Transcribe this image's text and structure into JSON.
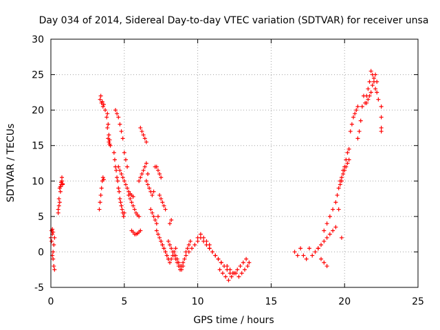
{
  "chart_data": {
    "type": "scatter",
    "title": "Day 034 of 2014, Sidereal Day-to-day VTEC variation (SDTVAR) for receiver unsa",
    "xlabel": "GPS time / hours",
    "ylabel": "SDTVAR / TECUs",
    "xlim": [
      0,
      25
    ],
    "ylim": [
      -5,
      30
    ],
    "xticks": [
      0,
      5,
      10,
      15,
      20,
      25
    ],
    "yticks": [
      -5,
      0,
      5,
      10,
      15,
      20,
      25,
      30
    ],
    "xtick_labels": [
      "0",
      "5",
      "10",
      "15",
      "20",
      "25"
    ],
    "ytick_labels": [
      "-5",
      "0",
      "5",
      "10",
      "15",
      "20",
      "25",
      "30"
    ],
    "grid": true,
    "marker": "+",
    "color": "#ff0000",
    "series": [
      {
        "name": "SDTVAR",
        "x": [
          0.0,
          0.05,
          0.1,
          0.15,
          0.2,
          0.25,
          0.05,
          0.1,
          0.15,
          0.2,
          0.25,
          0.1,
          0.15,
          0.5,
          0.55,
          0.6,
          0.65,
          0.7,
          0.75,
          0.5,
          0.55,
          0.6,
          0.65,
          0.7,
          0.75,
          0.8,
          0.8,
          3.3,
          3.35,
          3.4,
          3.45,
          3.5,
          3.55,
          3.6,
          3.35,
          3.45,
          3.55,
          3.4,
          3.5,
          3.6,
          3.7,
          3.8,
          3.85,
          3.9,
          3.95,
          4.0,
          3.85,
          3.9,
          3.95,
          4.0,
          4.05,
          4.3,
          4.35,
          4.4,
          4.45,
          4.5,
          4.55,
          4.6,
          4.65,
          4.7,
          4.75,
          4.8,
          4.85,
          4.9,
          4.95,
          5.0,
          4.4,
          4.5,
          4.6,
          4.7,
          4.8,
          4.9,
          5.0,
          5.1,
          5.2,
          4.6,
          4.7,
          4.8,
          4.9,
          5.0,
          5.1,
          5.2,
          5.3,
          5.4,
          5.5,
          5.6,
          5.3,
          5.4,
          5.5,
          5.6,
          5.7,
          5.8,
          5.9,
          6.0,
          5.5,
          5.6,
          5.7,
          5.8,
          5.9,
          6.0,
          6.1,
          6.0,
          6.1,
          6.2,
          6.3,
          6.4,
          6.5,
          6.6,
          6.1,
          6.2,
          6.3,
          6.4,
          6.5,
          6.5,
          6.6,
          6.7,
          6.8,
          6.9,
          7.0,
          7.1,
          7.2,
          7.3,
          7.4,
          7.5,
          6.8,
          6.9,
          7.0,
          7.1,
          7.2,
          7.3,
          7.4,
          7.5,
          7.6,
          7.7,
          7.8,
          7.2,
          7.3,
          7.4,
          7.5,
          7.6,
          7.7,
          7.8,
          7.9,
          8.0,
          8.1,
          8.2,
          7.5,
          7.6,
          7.7,
          7.8,
          7.9,
          8.0,
          8.1,
          8.2,
          8.3,
          8.4,
          8.5,
          8.0,
          8.1,
          8.2,
          8.3,
          8.4,
          8.5,
          8.6,
          8.7,
          8.8,
          8.9,
          9.0,
          8.5,
          8.6,
          8.7,
          8.8,
          8.9,
          9.0,
          9.1,
          9.2,
          9.3,
          9.4,
          9.5,
          9.2,
          9.4,
          9.6,
          9.8,
          10.0,
          10.2,
          10.4,
          10.6,
          10.8,
          10.0,
          10.2,
          10.4,
          10.6,
          10.8,
          11.0,
          11.2,
          11.4,
          11.6,
          10.8,
          11.0,
          11.2,
          11.4,
          11.6,
          11.8,
          12.0,
          12.2,
          12.4,
          11.5,
          11.7,
          11.9,
          12.1,
          12.3,
          12.5,
          12.7,
          12.9,
          13.1,
          13.3,
          13.5,
          12.0,
          12.2,
          12.4,
          12.6,
          12.8,
          13.0,
          13.2,
          13.4,
          16.6,
          16.8,
          17.0,
          17.2,
          17.4,
          17.6,
          17.8,
          18.0,
          18.2,
          18.4,
          18.6,
          18.8,
          18.2,
          18.4,
          18.6,
          18.8,
          19.0,
          19.2,
          19.4,
          18.6,
          18.8,
          19.0,
          19.2,
          19.4,
          19.6,
          19.8,
          19.5,
          19.6,
          19.7,
          19.8,
          19.9,
          20.0,
          20.1,
          20.2,
          20.3,
          19.7,
          19.8,
          19.9,
          20.0,
          20.1,
          20.2,
          20.3,
          20.4,
          20.5,
          20.6,
          20.7,
          20.8,
          20.9,
          20.9,
          21.0,
          21.1,
          21.2,
          21.3,
          21.4,
          21.5,
          21.6,
          21.7,
          21.8,
          21.9,
          22.0,
          22.1,
          22.2,
          22.3,
          21.5,
          21.6,
          21.7,
          21.8,
          21.9,
          22.0,
          22.1,
          22.2,
          22.5,
          22.5,
          22.5,
          22.5
        ],
        "y": [
          2.0,
          3.0,
          -0.5,
          0.0,
          -2.0,
          -2.5,
          1.5,
          2.5,
          -1.0,
          1.0,
          2.0,
          3.2,
          2.8,
          5.5,
          6.5,
          7.0,
          8.5,
          9.5,
          10.0,
          6.0,
          7.5,
          9.0,
          9.2,
          9.8,
          10.5,
          9.5,
          9.6,
          6.0,
          7.0,
          8.0,
          9.0,
          10.0,
          10.5,
          10.2,
          21.5,
          21.0,
          20.5,
          22.0,
          21.2,
          20.8,
          20.0,
          19.0,
          17.5,
          16.0,
          15.5,
          15.8,
          19.5,
          18.0,
          16.5,
          15.2,
          15.0,
          14.0,
          13.0,
          12.0,
          11.5,
          10.5,
          10.0,
          9.0,
          8.5,
          7.5,
          7.0,
          6.5,
          6.0,
          5.5,
          5.0,
          5.5,
          20.0,
          19.5,
          19.0,
          18.0,
          17.0,
          16.0,
          14.0,
          13.0,
          12.0,
          12.0,
          11.5,
          11.0,
          10.5,
          10.0,
          9.5,
          9.0,
          8.5,
          8.2,
          8.0,
          7.8,
          8.0,
          7.5,
          7.0,
          6.5,
          6.0,
          5.5,
          5.2,
          5.0,
          3.0,
          2.8,
          2.5,
          2.5,
          2.6,
          2.8,
          3.0,
          10.0,
          10.5,
          11.0,
          11.5,
          12.0,
          12.5,
          11.0,
          17.5,
          17.0,
          16.5,
          16.0,
          15.5,
          10.0,
          9.5,
          9.0,
          8.5,
          8.0,
          8.5,
          12.0,
          12.0,
          11.5,
          11.0,
          10.5,
          6.0,
          5.5,
          5.0,
          4.5,
          4.0,
          5.0,
          8.0,
          7.5,
          7.0,
          6.5,
          6.0,
          3.0,
          2.5,
          2.0,
          1.5,
          1.0,
          0.5,
          0.0,
          -0.5,
          -1.0,
          4.0,
          4.5,
          1.5,
          1.0,
          0.5,
          0.0,
          -0.5,
          -1.0,
          -1.5,
          -1.0,
          -0.5,
          0.0,
          0.5,
          1.5,
          1.0,
          0.5,
          0.0,
          -0.5,
          -1.0,
          -1.5,
          -2.0,
          -2.5,
          -2.0,
          -1.5,
          -0.5,
          -1.0,
          -1.5,
          -2.0,
          -2.5,
          -2.0,
          -1.0,
          0.0,
          0.5,
          1.0,
          1.5,
          -0.5,
          0.0,
          0.5,
          1.0,
          2.0,
          2.5,
          2.0,
          1.5,
          1.0,
          1.5,
          2.0,
          1.5,
          1.0,
          0.5,
          0.0,
          -0.5,
          -1.0,
          -1.5,
          0.5,
          0.0,
          -0.5,
          -1.0,
          -1.5,
          -2.0,
          -2.5,
          -3.0,
          -3.0,
          -2.5,
          -3.0,
          -3.5,
          -4.0,
          -3.5,
          -3.0,
          -2.5,
          -2.0,
          -1.5,
          -1.0,
          -1.5,
          -2.0,
          -2.5,
          -3.0,
          -3.0,
          -3.5,
          -3.0,
          -2.5,
          -2.0,
          0.0,
          -0.5,
          0.5,
          -0.5,
          -1.0,
          0.5,
          -0.5,
          0.0,
          0.5,
          -1.0,
          -1.5,
          -2.0,
          0.5,
          1.0,
          1.5,
          2.0,
          2.5,
          3.0,
          3.5,
          3.0,
          4.0,
          5.0,
          6.0,
          7.0,
          6.0,
          2.0,
          8.0,
          9.0,
          9.5,
          10.0,
          11.0,
          11.5,
          12.0,
          12.5,
          13.0,
          10.0,
          10.5,
          11.5,
          12.0,
          13.0,
          14.0,
          14.5,
          17.0,
          18.0,
          19.0,
          19.5,
          20.0,
          20.5,
          16.0,
          17.0,
          18.5,
          20.5,
          22.0,
          21.0,
          22.0,
          23.0,
          24.0,
          25.5,
          25.0,
          24.0,
          23.0,
          22.5,
          21.5,
          21.0,
          21.5,
          22.0,
          22.5,
          23.5,
          24.5,
          25.0,
          24.0,
          20.5,
          19.0,
          17.5,
          17.0
        ]
      }
    ]
  }
}
